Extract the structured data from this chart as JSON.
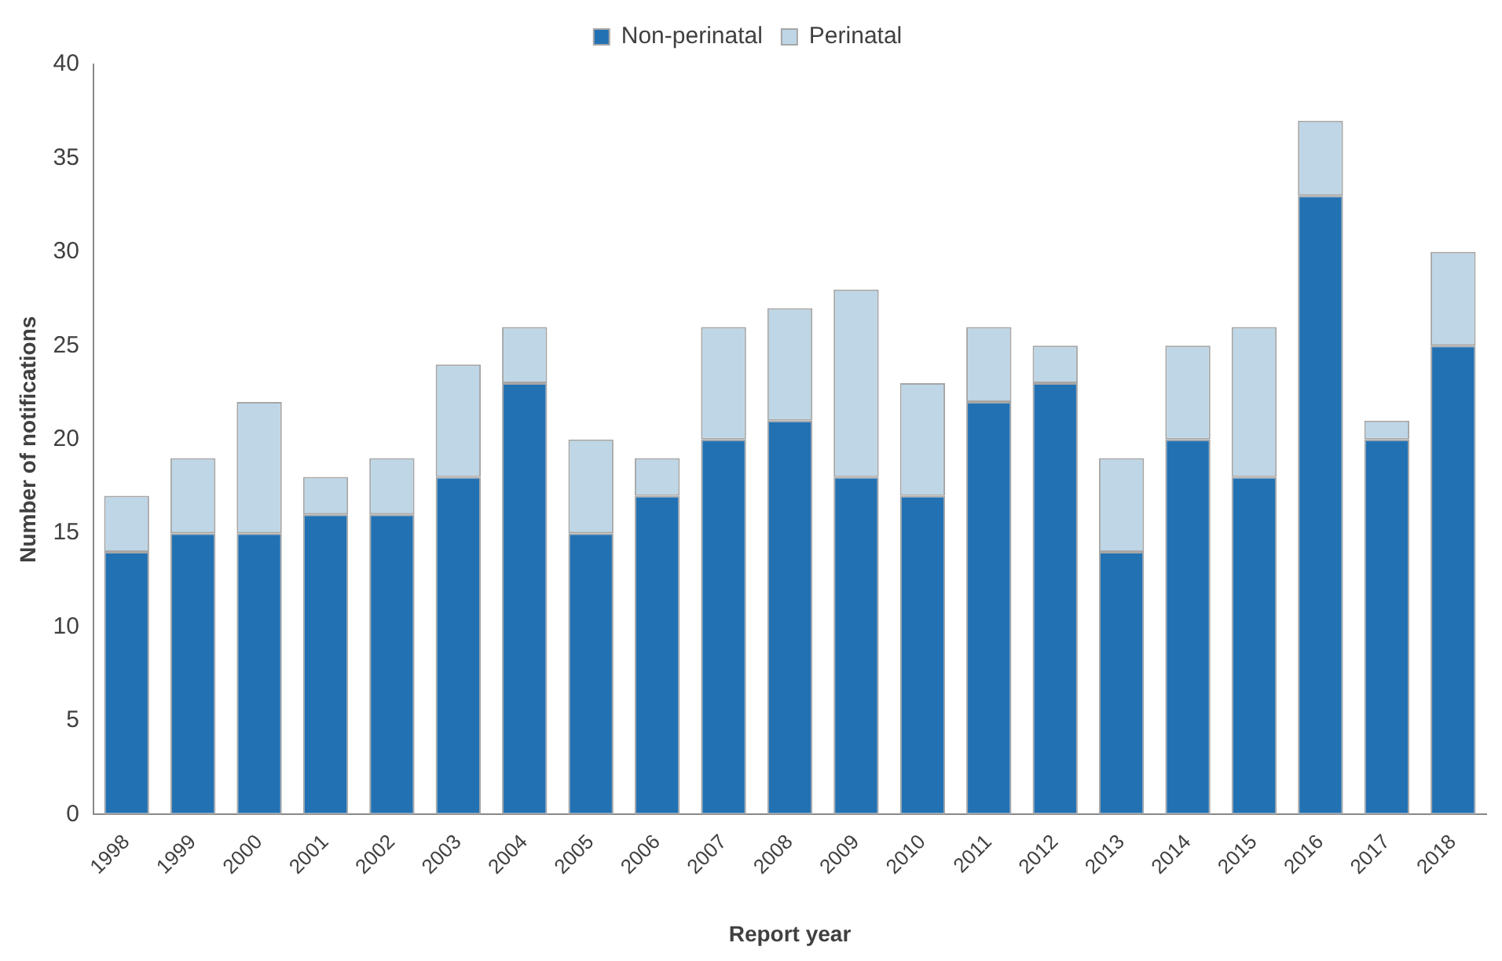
{
  "chart_data": {
    "type": "bar",
    "stacked": true,
    "xlabel": "Report year",
    "ylabel": "Number of notifications",
    "categories": [
      "1998",
      "1999",
      "2000",
      "2001",
      "2002",
      "2003",
      "2004",
      "2005",
      "2006",
      "2007",
      "2008",
      "2009",
      "2010",
      "2011",
      "2012",
      "2013",
      "2014",
      "2015",
      "2016",
      "2017",
      "2018"
    ],
    "series": [
      {
        "name": "Non-perinatal",
        "color": "#2271b3",
        "values": [
          14,
          15,
          15,
          16,
          16,
          18,
          23,
          15,
          17,
          20,
          21,
          18,
          17,
          22,
          23,
          14,
          20,
          18,
          33,
          20,
          25
        ]
      },
      {
        "name": "Perinatal",
        "color": "#bed6e6",
        "values": [
          3,
          4,
          7,
          2,
          3,
          6,
          3,
          5,
          2,
          6,
          6,
          10,
          6,
          4,
          2,
          5,
          5,
          8,
          4,
          1,
          5
        ]
      }
    ],
    "ylim": [
      0,
      40
    ],
    "yticks": [
      0,
      5,
      10,
      15,
      20,
      25,
      30,
      35,
      40
    ],
    "grid": false,
    "legend": "top"
  }
}
